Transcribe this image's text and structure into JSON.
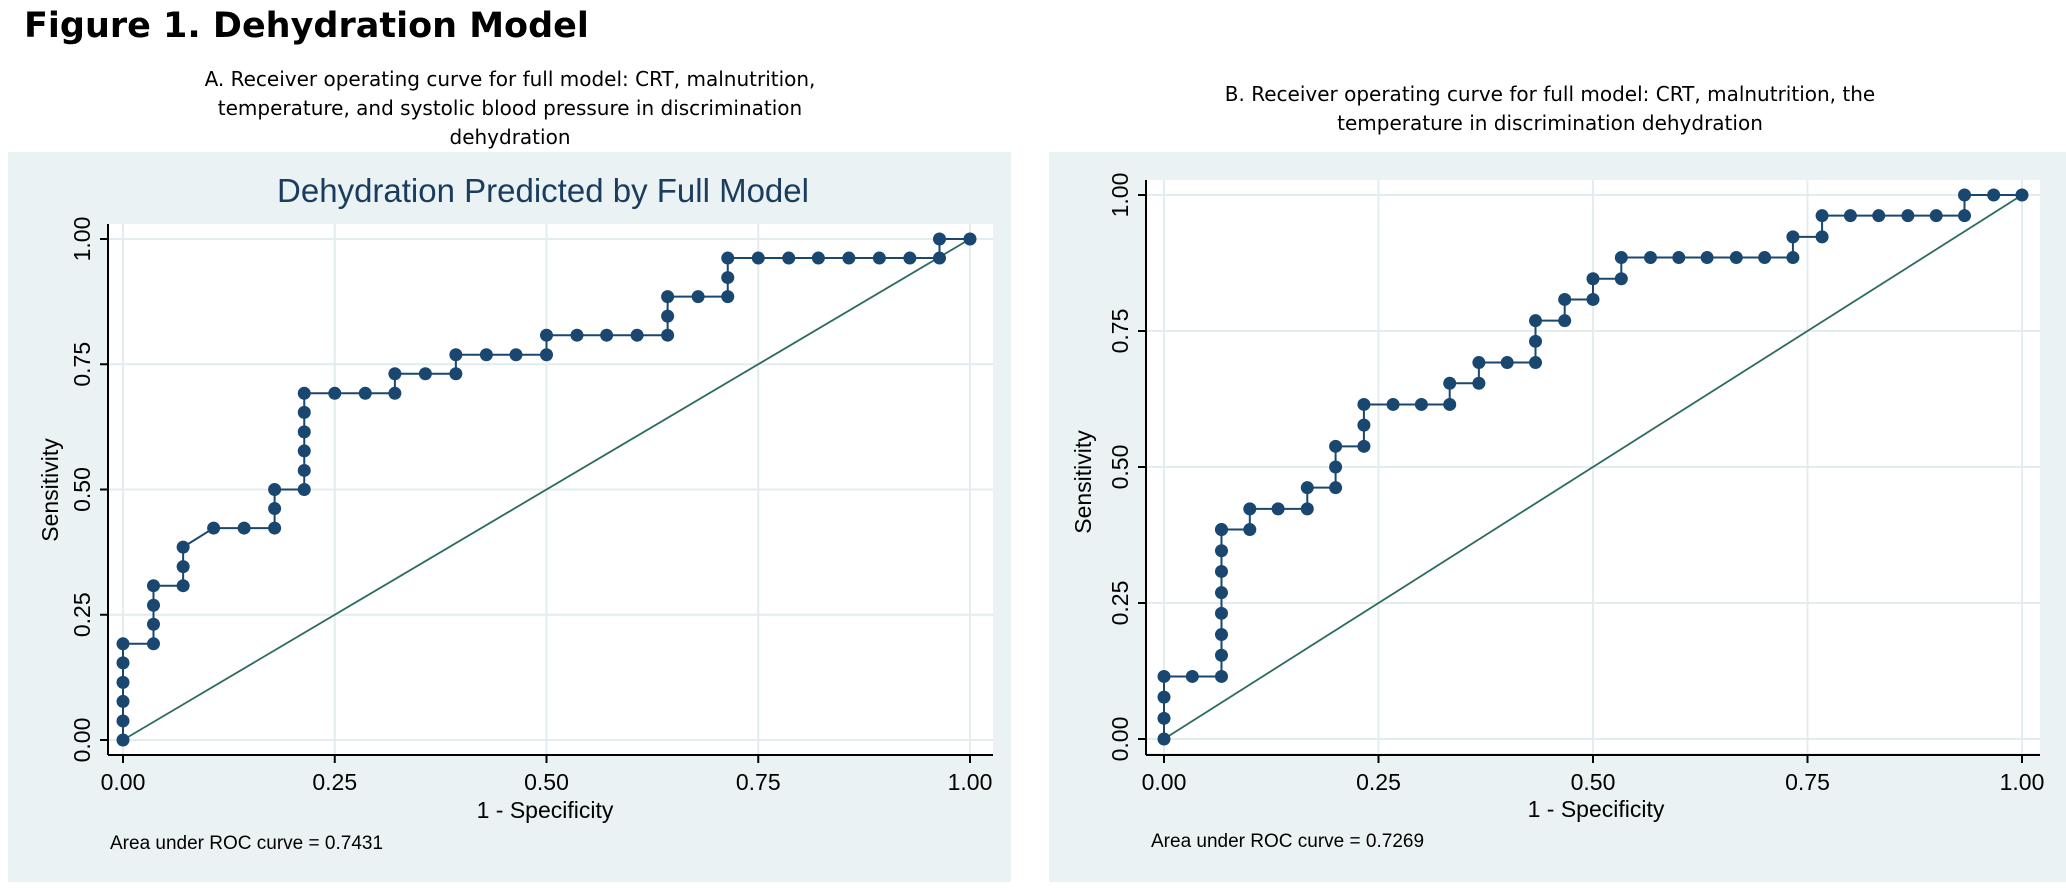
{
  "figure": {
    "title": "Figure 1. Dehydration Model",
    "caption_a": "A. Receiver operating curve for full model: CRT, malnutrition, temperature, and systolic blood pressure in discrimination dehydration",
    "caption_b": "B. Receiver operating curve for full model: CRT, malnutrition, the temperature in discrimination dehydration"
  },
  "colors": {
    "panel_bg": "#eaf2f3",
    "curve": "#1a476f",
    "reference": "#2d6b5f",
    "grid": "#e3ecee"
  },
  "chart_data": [
    {
      "type": "line",
      "title": "Dehydration Predicted by Full Model",
      "xlabel": "1 - Specificity",
      "ylabel": "Sensitivity",
      "xlim": [
        0,
        1
      ],
      "ylim": [
        0,
        1
      ],
      "xticks": [
        "0.00",
        "0.25",
        "0.50",
        "0.75",
        "1.00"
      ],
      "yticks": [
        "0.00",
        "0.25",
        "0.50",
        "0.75",
        "1.00"
      ],
      "grid": true,
      "note": "Area under ROC curve = 0.7431",
      "series": [
        {
          "x": [
            0,
            0,
            0,
            0,
            0,
            0,
            0.036,
            0.036,
            0.036,
            0.036,
            0.071,
            0.071,
            0.071,
            0.107,
            0.143,
            0.179,
            0.179,
            0.179,
            0.214,
            0.214,
            0.214,
            0.214,
            0.214,
            0.214,
            0.25,
            0.286,
            0.321,
            0.321,
            0.357,
            0.393,
            0.393,
            0.429,
            0.464,
            0.5,
            0.5,
            0.536,
            0.571,
            0.607,
            0.643,
            0.643,
            0.643,
            0.679,
            0.714,
            0.714,
            0.714,
            0.75,
            0.786,
            0.821,
            0.857,
            0.893,
            0.929,
            0.964,
            0.964,
            1
          ],
          "y": [
            0,
            0.038,
            0.077,
            0.115,
            0.154,
            0.192,
            0.192,
            0.231,
            0.269,
            0.308,
            0.308,
            0.346,
            0.385,
            0.423,
            0.423,
            0.423,
            0.462,
            0.5,
            0.5,
            0.538,
            0.577,
            0.615,
            0.654,
            0.692,
            0.692,
            0.692,
            0.692,
            0.731,
            0.731,
            0.731,
            0.769,
            0.769,
            0.769,
            0.769,
            0.808,
            0.808,
            0.808,
            0.808,
            0.808,
            0.846,
            0.885,
            0.885,
            0.885,
            0.923,
            0.962,
            0.962,
            0.962,
            0.962,
            0.962,
            0.962,
            0.962,
            0.962,
            1,
            1
          ]
        },
        {
          "x": [
            0,
            1
          ],
          "y": [
            0,
            1
          ]
        }
      ]
    },
    {
      "type": "line",
      "title": "",
      "xlabel": "1 - Specificity",
      "ylabel": "Sensitivity",
      "xlim": [
        0,
        1
      ],
      "ylim": [
        0,
        1
      ],
      "xticks": [
        "0.00",
        "0.25",
        "0.50",
        "0.75",
        "1.00"
      ],
      "yticks": [
        "0.00",
        "0.25",
        "0.50",
        "0.75",
        "1.00"
      ],
      "grid": true,
      "note": "Area under ROC curve = 0.7269",
      "series": [
        {
          "x": [
            0,
            0,
            0,
            0,
            0.033,
            0.067,
            0.067,
            0.067,
            0.067,
            0.067,
            0.067,
            0.067,
            0.067,
            0.067,
            0.1,
            0.1,
            0.133,
            0.167,
            0.167,
            0.2,
            0.2,
            0.2,
            0.233,
            0.233,
            0.233,
            0.267,
            0.3,
            0.333,
            0.333,
            0.367,
            0.367,
            0.4,
            0.433,
            0.433,
            0.433,
            0.467,
            0.467,
            0.5,
            0.5,
            0.533,
            0.533,
            0.567,
            0.6,
            0.633,
            0.667,
            0.7,
            0.733,
            0.733,
            0.767,
            0.767,
            0.8,
            0.833,
            0.867,
            0.9,
            0.933,
            0.933,
            0.967,
            1
          ],
          "y": [
            0,
            0.038,
            0.077,
            0.115,
            0.115,
            0.115,
            0.154,
            0.192,
            0.231,
            0.269,
            0.308,
            0.346,
            0.385,
            0.385,
            0.385,
            0.423,
            0.423,
            0.423,
            0.462,
            0.462,
            0.5,
            0.538,
            0.538,
            0.577,
            0.615,
            0.615,
            0.615,
            0.615,
            0.654,
            0.654,
            0.692,
            0.692,
            0.692,
            0.731,
            0.769,
            0.769,
            0.808,
            0.808,
            0.846,
            0.846,
            0.885,
            0.885,
            0.885,
            0.885,
            0.885,
            0.885,
            0.885,
            0.923,
            0.923,
            0.962,
            0.962,
            0.962,
            0.962,
            0.962,
            0.962,
            1,
            1,
            1
          ]
        },
        {
          "x": [
            0,
            1
          ],
          "y": [
            0,
            1
          ]
        }
      ]
    }
  ]
}
